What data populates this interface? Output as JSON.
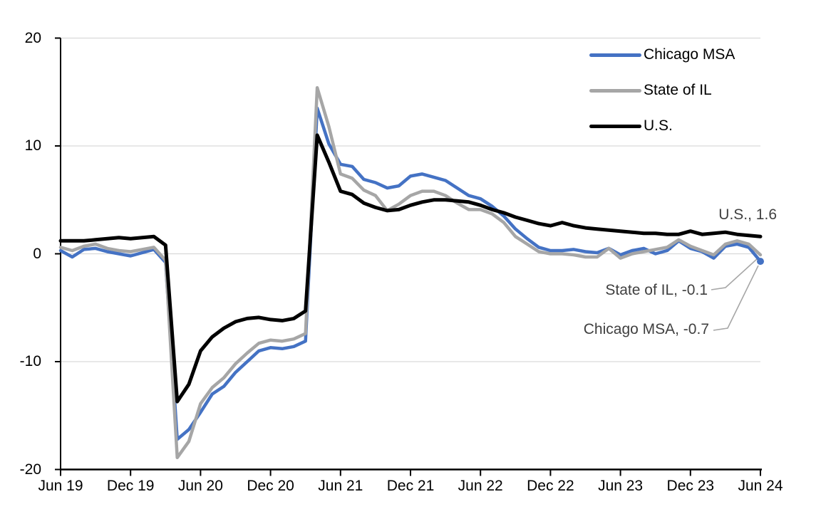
{
  "chart_data": {
    "type": "line",
    "title": "",
    "xlabel": "",
    "ylabel": "",
    "ylim": [
      -20,
      20
    ],
    "y_ticks": [
      20,
      10,
      0,
      -10,
      -20
    ],
    "y_tick_labels": [
      "20",
      "10",
      "0",
      "-10",
      "-20"
    ],
    "x_start_label": "Jun 19",
    "x_end_label": "Jun 24",
    "x_tick_every_months": 6,
    "x_tick_labels": [
      "Jun 19",
      "Dec 19",
      "Jun 20",
      "Dec 20",
      "Jun 21",
      "Dec 21",
      "Jun 22",
      "Dec 22",
      "Jun 23",
      "Dec 23",
      "Jun 24"
    ],
    "grid": "horizontal",
    "legend_position": "top-right-inside",
    "grid_color": "#D9D9D9",
    "axis_color": "#000000",
    "annotation_color": "#404040",
    "leader_line_color": "#A6A6A6",
    "series": [
      {
        "name": "Chicago MSA",
        "color": "#4472C4",
        "width": 4.5,
        "end_marker": true,
        "values": [
          0.3,
          -0.3,
          0.4,
          0.5,
          0.2,
          0.0,
          -0.2,
          0.1,
          0.4,
          -0.8,
          -17.2,
          -16.3,
          -14.7,
          -13.0,
          -12.3,
          -11.0,
          -10.0,
          -9.0,
          -8.7,
          -8.8,
          -8.6,
          -8.1,
          13.5,
          10.2,
          8.3,
          8.1,
          6.9,
          6.6,
          6.1,
          6.3,
          7.2,
          7.4,
          7.1,
          6.8,
          6.1,
          5.4,
          5.1,
          4.4,
          3.5,
          2.3,
          1.4,
          0.6,
          0.3,
          0.3,
          0.4,
          0.2,
          0.1,
          0.5,
          -0.1,
          0.3,
          0.5,
          0.0,
          0.3,
          1.2,
          0.5,
          0.2,
          -0.4,
          0.7,
          0.9,
          0.6,
          -0.7
        ]
      },
      {
        "name": "State of IL",
        "color": "#A6A6A6",
        "width": 4.5,
        "end_marker": false,
        "values": [
          0.6,
          0.3,
          0.7,
          0.9,
          0.5,
          0.3,
          0.2,
          0.4,
          0.6,
          -0.6,
          -18.9,
          -17.4,
          -13.9,
          -12.4,
          -11.5,
          -10.2,
          -9.2,
          -8.3,
          -8.0,
          -8.1,
          -7.9,
          -7.4,
          15.4,
          11.8,
          7.4,
          7.0,
          5.9,
          5.4,
          4.0,
          4.6,
          5.4,
          5.8,
          5.8,
          5.4,
          4.7,
          4.1,
          4.1,
          3.7,
          2.9,
          1.6,
          0.9,
          0.2,
          0.0,
          0.0,
          -0.1,
          -0.3,
          -0.3,
          0.5,
          -0.4,
          0.0,
          0.2,
          0.4,
          0.6,
          1.3,
          0.7,
          0.3,
          -0.1,
          0.9,
          1.2,
          0.9,
          -0.1
        ]
      },
      {
        "name": "U.S.",
        "color": "#000000",
        "width": 5,
        "end_marker": false,
        "values": [
          1.2,
          1.2,
          1.2,
          1.3,
          1.4,
          1.5,
          1.4,
          1.5,
          1.6,
          0.8,
          -13.7,
          -12.1,
          -9.0,
          -7.7,
          -6.9,
          -6.3,
          -6.0,
          -5.9,
          -6.1,
          -6.2,
          -6.0,
          -5.3,
          11.0,
          8.5,
          5.8,
          5.5,
          4.7,
          4.3,
          4.0,
          4.1,
          4.5,
          4.8,
          5.0,
          5.0,
          4.9,
          4.8,
          4.5,
          4.1,
          3.8,
          3.4,
          3.1,
          2.8,
          2.6,
          2.9,
          2.6,
          2.4,
          2.3,
          2.2,
          2.1,
          2.0,
          1.9,
          1.9,
          1.8,
          1.8,
          2.1,
          1.8,
          1.9,
          2.0,
          1.8,
          1.7,
          1.6
        ]
      }
    ],
    "annotations": [
      {
        "id": "us",
        "text": "U.S., 1.6",
        "series": "U.S.",
        "value": 1.6
      },
      {
        "id": "il",
        "text": "State of IL, -0.1",
        "series": "State of IL",
        "value": -0.1
      },
      {
        "id": "chi",
        "text": "Chicago MSA, -0.7",
        "series": "Chicago MSA",
        "value": -0.7
      }
    ]
  },
  "legend": {
    "items": [
      {
        "label": "Chicago MSA"
      },
      {
        "label": "State of IL"
      },
      {
        "label": "U.S."
      }
    ]
  }
}
